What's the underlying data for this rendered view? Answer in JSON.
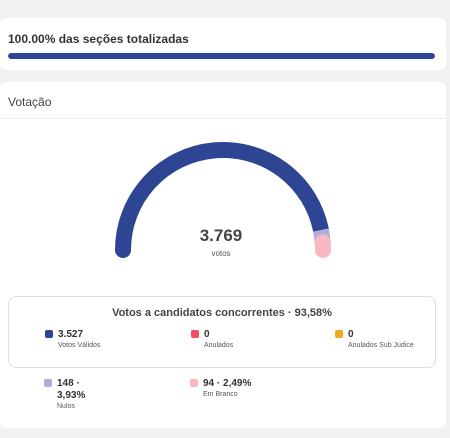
{
  "progress": {
    "title": "100.00% das seções totalizadas",
    "fraction": 1.0,
    "color": "#2e4593"
  },
  "votacao": {
    "header": "Votação",
    "total": "3.769",
    "total_label": "votos",
    "gauge_segments": [
      {
        "name": "Votos Válidos",
        "value": 3527,
        "color": "#2e4593"
      },
      {
        "name": "Nulos",
        "value": 148,
        "color": "#b1addb"
      },
      {
        "name": "Em Branco",
        "value": 94,
        "color": "#f7b8c2"
      }
    ]
  },
  "candidatos": {
    "title": "Votos a candidatos concorrentes · 93,58%",
    "stats": [
      {
        "value": "3.527",
        "label": "Votos Válidos",
        "color": "#2e4593"
      },
      {
        "value": "0",
        "label": "Anulados",
        "color": "#ef4e63"
      },
      {
        "value": "0",
        "label": "Anulados Sub Judice",
        "color": "#f5a623"
      }
    ]
  },
  "outros": [
    {
      "value": "148 · 3,93%",
      "label": "Nulos",
      "color": "#b1addb"
    },
    {
      "value": "94 · 2,49%",
      "label": "Em Branco",
      "color": "#f7b8c2"
    }
  ]
}
